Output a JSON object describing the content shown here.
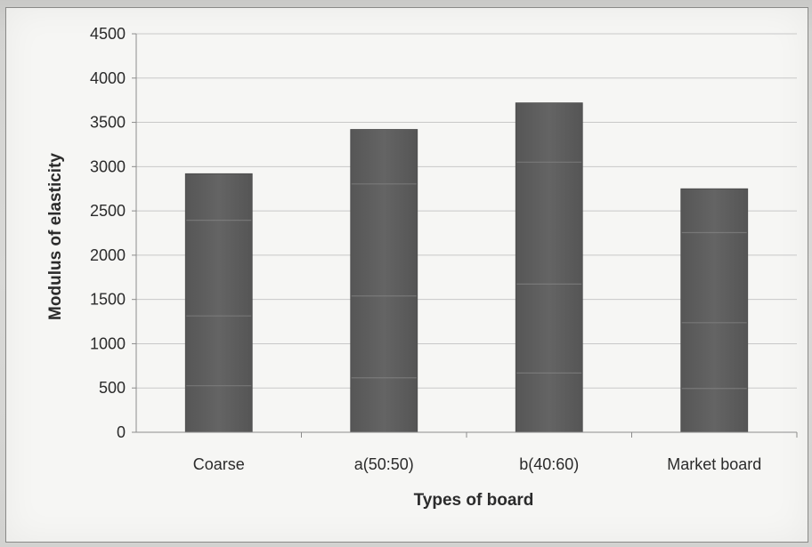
{
  "chart_data": {
    "type": "bar",
    "categories": [
      "Coarse",
      "a(50:50)",
      "b(40:60)",
      "Market board"
    ],
    "values": [
      2920,
      3420,
      3720,
      2750
    ],
    "title": "",
    "xlabel": "Types of board",
    "ylabel": "Modulus of elasticity",
    "ylim": [
      0,
      4500
    ],
    "yticks": [
      0,
      500,
      1000,
      1500,
      2000,
      2500,
      3000,
      3500,
      4000,
      4500
    ],
    "grid": true,
    "legend": "none",
    "colors": {
      "bar": "#5e5e5e",
      "grid": "#c8c8c8",
      "axis": "#8c8c8c"
    }
  }
}
